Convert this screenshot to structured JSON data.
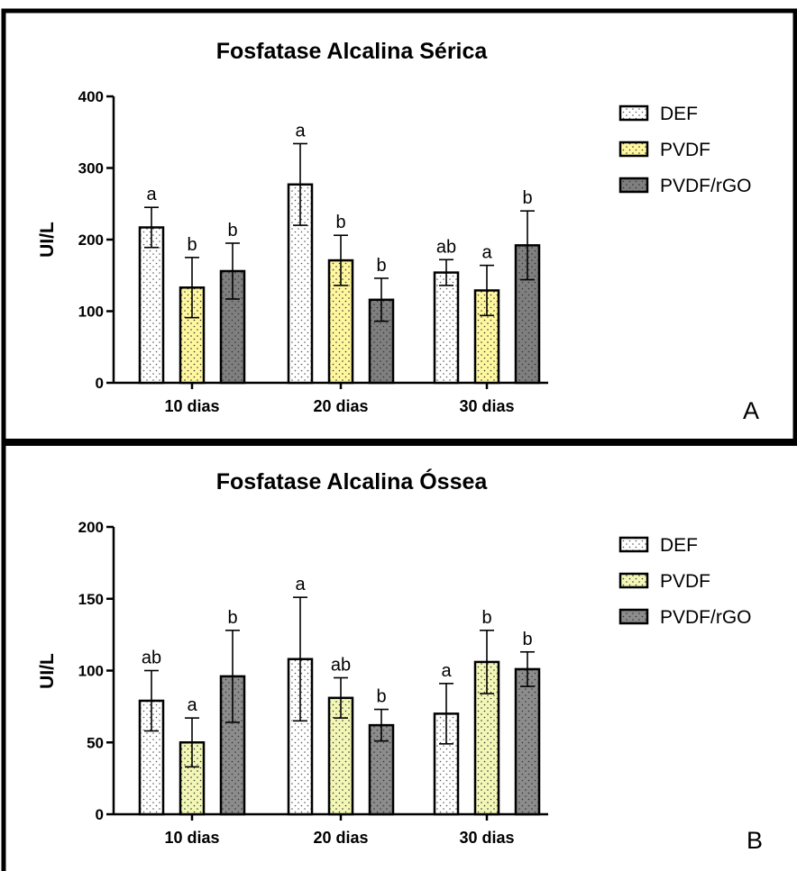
{
  "chart_data": [
    {
      "type": "bar",
      "title": "Fosfatase Alcalina Sérica",
      "ylabel": "UI/L",
      "xlabel": "",
      "panel_label": "A",
      "ylim": [
        0,
        400
      ],
      "yticks": [
        "0",
        "100",
        "200",
        "300",
        "400"
      ],
      "categories": [
        "10 dias",
        "20 dias",
        "30 dias"
      ],
      "legend_position": "top-right",
      "grid": false,
      "series": [
        {
          "name": "DEF",
          "fill": "#ffffff",
          "pattern": "dots",
          "values": [
            217,
            277,
            154
          ],
          "errors": [
            28,
            57,
            18
          ],
          "labels": [
            "a",
            "a",
            "ab"
          ]
        },
        {
          "name": "PVDF",
          "fill": "#fff79e",
          "pattern": "dots",
          "values": [
            133,
            171,
            129
          ],
          "errors": [
            42,
            35,
            35
          ],
          "labels": [
            "b",
            "b",
            "a"
          ]
        },
        {
          "name": "PVDF/rGO",
          "fill": "#7f7f7f",
          "pattern": "dots",
          "values": [
            156,
            116,
            192
          ],
          "errors": [
            39,
            30,
            48
          ],
          "labels": [
            "b",
            "b",
            "b"
          ]
        }
      ]
    },
    {
      "type": "bar",
      "title": "Fosfatase Alcalina Óssea",
      "ylabel": "UI/L",
      "xlabel": "",
      "panel_label": "B",
      "ylim": [
        0,
        200
      ],
      "yticks": [
        "0",
        "50",
        "100",
        "150",
        "200"
      ],
      "categories": [
        "10 dias",
        "20 dias",
        "30 dias"
      ],
      "legend_position": "top-right",
      "grid": false,
      "series": [
        {
          "name": "DEF",
          "fill": "#ffffff",
          "pattern": "dots",
          "values": [
            79,
            108,
            70
          ],
          "errors": [
            21,
            43,
            21
          ],
          "labels": [
            "ab",
            "a",
            "a"
          ]
        },
        {
          "name": "PVDF",
          "fill": "#f3f7b6",
          "pattern": "dots",
          "values": [
            50,
            81,
            106
          ],
          "errors": [
            17,
            14,
            22
          ],
          "labels": [
            "a",
            "ab",
            "b"
          ]
        },
        {
          "name": "PVDF/rGO",
          "fill": "#8c8c8c",
          "pattern": "dots",
          "values": [
            96,
            62,
            101
          ],
          "errors": [
            32,
            11,
            12
          ],
          "labels": [
            "b",
            "b",
            "b"
          ]
        }
      ]
    }
  ]
}
